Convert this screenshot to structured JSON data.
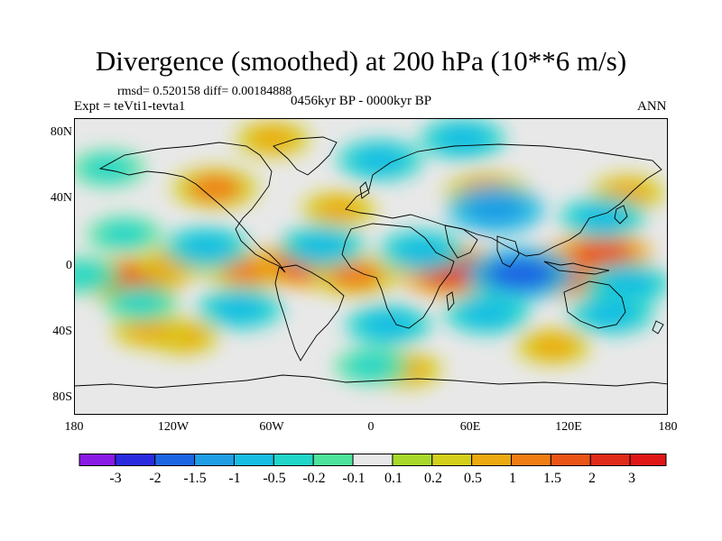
{
  "title": "Divergence (smoothed) at 200 hPa (10**6 m/s)",
  "stats": "rmsd= 0.520158 diff= 0.00184888",
  "experiment": "Expt = teVti1-tevta1",
  "period": "0456kyr BP - 0000kyr BP",
  "season": "ANN",
  "chart_data": {
    "type": "heatmap",
    "variable": "Divergence (smoothed)",
    "level": "200 hPa",
    "units": "10**6 m/s",
    "x_ticks": [
      "180",
      "120W",
      "60W",
      "0",
      "60E",
      "120E",
      "180"
    ],
    "y_ticks": [
      "80N",
      "40N",
      "0",
      "40S",
      "80S"
    ],
    "xlim": [
      -180,
      180
    ],
    "ylim": [
      -90,
      90
    ],
    "colorbar": {
      "levels": [
        "-3",
        "-2",
        "-1.5",
        "-1",
        "-0.5",
        "-0.2",
        "-0.1",
        "0.1",
        "0.2",
        "0.5",
        "1",
        "1.5",
        "2",
        "3"
      ],
      "colors": [
        "#8a1ae6",
        "#2a2be0",
        "#1d66e3",
        "#1f9ee6",
        "#18bde3",
        "#20d6c8",
        "#4ee39a",
        "#e8e8e8",
        "#a8d92a",
        "#d4cf1a",
        "#ecaa10",
        "#ef7d14",
        "#ea5516",
        "#e02a1a",
        "#e01616"
      ]
    },
    "features": [
      {
        "lon": -145,
        "lat": -8,
        "value": 1.5
      },
      {
        "lon": -120,
        "lat": 2,
        "value": 0.5
      },
      {
        "lon": -75,
        "lat": -2,
        "value": 1
      },
      {
        "lon": -40,
        "lat": 2,
        "value": 1.5
      },
      {
        "lon": -10,
        "lat": -5,
        "value": 1
      },
      {
        "lon": 48,
        "lat": -2,
        "value": 2
      },
      {
        "lon": 120,
        "lat": -2,
        "value": 2
      },
      {
        "lon": 140,
        "lat": 8,
        "value": 1.5
      },
      {
        "lon": -95,
        "lat": 48,
        "value": 1
      },
      {
        "lon": -20,
        "lat": 35,
        "value": 0.5
      },
      {
        "lon": 70,
        "lat": 45,
        "value": 1
      },
      {
        "lon": 155,
        "lat": 45,
        "value": 0.5
      },
      {
        "lon": -115,
        "lat": -42,
        "value": 0.5
      },
      {
        "lon": 20,
        "lat": -62,
        "value": 0.5
      },
      {
        "lon": -60,
        "lat": 78,
        "value": 0.5
      },
      {
        "lon": -135,
        "lat": -38,
        "value": 0.5
      },
      {
        "lon": 110,
        "lat": -48,
        "value": 0.5
      },
      {
        "lon": -100,
        "lat": 12,
        "value": -1
      },
      {
        "lon": -30,
        "lat": 13,
        "value": -1
      },
      {
        "lon": 30,
        "lat": 10,
        "value": -1
      },
      {
        "lon": 90,
        "lat": -4,
        "value": -2
      },
      {
        "lon": 75,
        "lat": 35,
        "value": -1.5
      },
      {
        "lon": 140,
        "lat": 30,
        "value": -1
      },
      {
        "lon": 155,
        "lat": -10,
        "value": -1
      },
      {
        "lon": 145,
        "lat": -28,
        "value": -1
      },
      {
        "lon": 5,
        "lat": 65,
        "value": -1
      },
      {
        "lon": 55,
        "lat": 78,
        "value": -1
      },
      {
        "lon": -160,
        "lat": 60,
        "value": -0.5
      },
      {
        "lon": -150,
        "lat": 20,
        "value": -0.5
      },
      {
        "lon": -80,
        "lat": -25,
        "value": -1
      },
      {
        "lon": 10,
        "lat": -35,
        "value": -1
      },
      {
        "lon": 70,
        "lat": -28,
        "value": -1
      },
      {
        "lon": -175,
        "lat": -5,
        "value": -0.5
      },
      {
        "lon": -140,
        "lat": -22,
        "value": -0.5
      },
      {
        "lon": 0,
        "lat": -60,
        "value": -0.5
      }
    ]
  }
}
